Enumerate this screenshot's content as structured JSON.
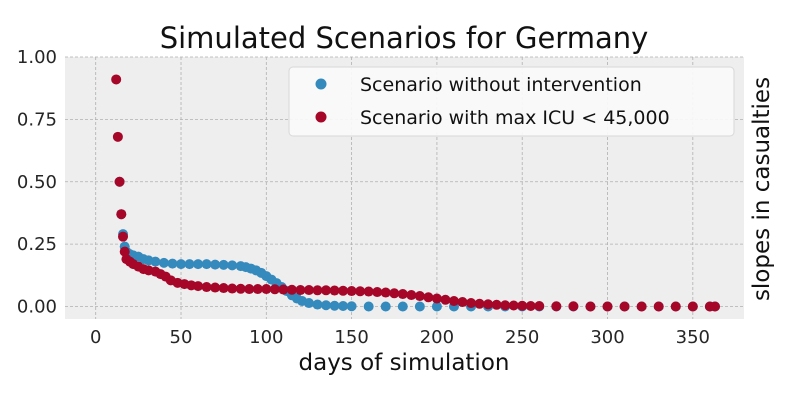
{
  "chart_data": {
    "type": "scatter",
    "title": "Simulated Scenarios for Germany",
    "xlabel": "days of simulation",
    "ylabel": "slopes in casualties",
    "xlim": [
      -18,
      380
    ],
    "ylim": [
      -0.05,
      1.0
    ],
    "xticks": [
      0,
      50,
      100,
      150,
      200,
      250,
      300,
      350
    ],
    "yticks": [
      0.0,
      0.25,
      0.5,
      0.75,
      1.0
    ],
    "xtick_labels": [
      "0",
      "50",
      "100",
      "150",
      "200",
      "250",
      "300",
      "350"
    ],
    "ytick_labels": [
      "0.00",
      "0.25",
      "0.50",
      "0.75",
      "1.00"
    ],
    "grid": true,
    "legend_position": "top-right",
    "series": [
      {
        "name": "Scenario without intervention",
        "color": "#348abd",
        "points": [
          [
            14,
            0.5
          ],
          [
            15,
            0.37
          ],
          [
            16,
            0.29
          ],
          [
            17,
            0.24
          ],
          [
            18,
            0.22
          ],
          [
            20,
            0.21
          ],
          [
            22,
            0.205
          ],
          [
            25,
            0.2
          ],
          [
            28,
            0.19
          ],
          [
            31,
            0.185
          ],
          [
            35,
            0.18
          ],
          [
            40,
            0.175
          ],
          [
            45,
            0.172
          ],
          [
            50,
            0.17
          ],
          [
            55,
            0.17
          ],
          [
            60,
            0.17
          ],
          [
            65,
            0.17
          ],
          [
            70,
            0.168
          ],
          [
            75,
            0.167
          ],
          [
            80,
            0.165
          ],
          [
            85,
            0.162
          ],
          [
            88,
            0.158
          ],
          [
            91,
            0.152
          ],
          [
            94,
            0.145
          ],
          [
            97,
            0.135
          ],
          [
            100,
            0.122
          ],
          [
            103,
            0.108
          ],
          [
            106,
            0.094
          ],
          [
            109,
            0.078
          ],
          [
            112,
            0.062
          ],
          [
            115,
            0.045
          ],
          [
            118,
            0.032
          ],
          [
            121,
            0.022
          ],
          [
            125,
            0.014
          ],
          [
            130,
            0.008
          ],
          [
            135,
            0.005
          ],
          [
            140,
            0.003
          ],
          [
            145,
            0.002
          ],
          [
            150,
            0.001
          ],
          [
            160,
            0.0
          ],
          [
            170,
            0.0
          ],
          [
            180,
            0.0
          ],
          [
            190,
            0.0
          ],
          [
            200,
            0.0
          ],
          [
            210,
            0.0
          ],
          [
            220,
            0.0
          ],
          [
            230,
            0.0
          ],
          [
            240,
            0.0
          ],
          [
            250,
            0.0
          ],
          [
            260,
            0.0
          ],
          [
            270,
            0.0
          ],
          [
            280,
            0.0
          ],
          [
            290,
            0.0
          ],
          [
            300,
            0.0
          ],
          [
            310,
            0.0
          ],
          [
            320,
            0.0
          ],
          [
            330,
            0.0
          ],
          [
            340,
            0.0
          ],
          [
            350,
            0.0
          ],
          [
            360,
            0.0
          ],
          [
            363,
            0.0
          ]
        ]
      },
      {
        "name": "Scenario with max ICU < 45,000",
        "color": "#a60628",
        "points": [
          [
            12,
            0.91
          ],
          [
            13,
            0.68
          ],
          [
            14,
            0.5
          ],
          [
            15,
            0.37
          ],
          [
            16,
            0.28
          ],
          [
            17,
            0.22
          ],
          [
            18,
            0.19
          ],
          [
            20,
            0.18
          ],
          [
            22,
            0.17
          ],
          [
            25,
            0.16
          ],
          [
            28,
            0.15
          ],
          [
            31,
            0.145
          ],
          [
            35,
            0.14
          ],
          [
            38,
            0.13
          ],
          [
            41,
            0.12
          ],
          [
            44,
            0.105
          ],
          [
            48,
            0.095
          ],
          [
            52,
            0.09
          ],
          [
            56,
            0.085
          ],
          [
            60,
            0.082
          ],
          [
            65,
            0.078
          ],
          [
            70,
            0.076
          ],
          [
            75,
            0.074
          ],
          [
            80,
            0.072
          ],
          [
            85,
            0.071
          ],
          [
            90,
            0.07
          ],
          [
            95,
            0.07
          ],
          [
            100,
            0.07
          ],
          [
            105,
            0.069
          ],
          [
            110,
            0.068
          ],
          [
            115,
            0.067
          ],
          [
            120,
            0.066
          ],
          [
            125,
            0.066
          ],
          [
            130,
            0.065
          ],
          [
            135,
            0.065
          ],
          [
            140,
            0.064
          ],
          [
            145,
            0.063
          ],
          [
            150,
            0.062
          ],
          [
            155,
            0.061
          ],
          [
            160,
            0.06
          ],
          [
            165,
            0.058
          ],
          [
            170,
            0.056
          ],
          [
            175,
            0.053
          ],
          [
            180,
            0.05
          ],
          [
            185,
            0.046
          ],
          [
            190,
            0.042
          ],
          [
            195,
            0.037
          ],
          [
            200,
            0.032
          ],
          [
            205,
            0.027
          ],
          [
            210,
            0.022
          ],
          [
            215,
            0.018
          ],
          [
            220,
            0.014
          ],
          [
            225,
            0.011
          ],
          [
            230,
            0.009
          ],
          [
            235,
            0.007
          ],
          [
            240,
            0.005
          ],
          [
            245,
            0.004
          ],
          [
            250,
            0.003
          ],
          [
            255,
            0.002
          ],
          [
            260,
            0.002
          ],
          [
            270,
            0.001
          ],
          [
            280,
            0.001
          ],
          [
            290,
            0.0
          ],
          [
            300,
            0.0
          ],
          [
            310,
            0.0
          ],
          [
            320,
            0.0
          ],
          [
            330,
            0.0
          ],
          [
            340,
            0.0
          ],
          [
            350,
            0.0
          ],
          [
            360,
            0.0
          ],
          [
            363,
            0.0
          ]
        ]
      }
    ]
  }
}
